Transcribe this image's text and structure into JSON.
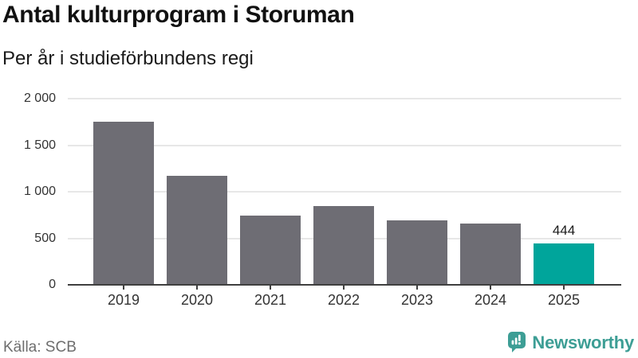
{
  "chart_data": {
    "type": "bar",
    "title": "Antal kulturprogram i Storuman",
    "subtitle": "Per år i studieförbundens regi",
    "categories": [
      "2019",
      "2020",
      "2021",
      "2022",
      "2023",
      "2024",
      "2025"
    ],
    "values": [
      1750,
      1175,
      745,
      850,
      695,
      660,
      444
    ],
    "bar_labels": [
      null,
      null,
      null,
      null,
      null,
      null,
      "444"
    ],
    "highlight_index": 6,
    "xlabel": "",
    "ylabel": "",
    "ylim": [
      0,
      2000
    ],
    "yticks": [
      0,
      500,
      1000,
      1500,
      2000
    ],
    "ytick_labels": [
      "0",
      "500",
      "1 000",
      "1 500",
      "2 000"
    ],
    "grid": "horizontal",
    "legend": "none"
  },
  "footer": {
    "source": "Källa: SCB",
    "brand": "Newsworthy"
  },
  "icons": {
    "brand_logo": "newsworthy-speech-bubble-barchart-icon"
  },
  "colors": {
    "bar_gray": "#6e6d74",
    "bar_highlight_teal": "#00a59b",
    "gridline": "#e7e7e7",
    "axis": "#3f3f3f",
    "axis_text": "#333333",
    "title_text": "#111111",
    "source_text": "#6e6e6e",
    "brand_teal": "#3d9e95",
    "background": "#ffffff"
  }
}
